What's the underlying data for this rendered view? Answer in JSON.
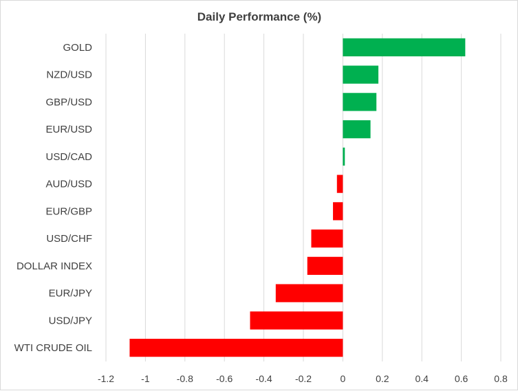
{
  "chart_data": {
    "type": "bar",
    "orientation": "horizontal",
    "title": "Daily Performance  (%)",
    "xlabel": "",
    "ylabel": "",
    "xlim": [
      -1.2,
      0.8
    ],
    "x_ticks": [
      -1.2,
      -1,
      -0.8,
      -0.6,
      -0.4,
      -0.2,
      0,
      0.2,
      0.4,
      0.6,
      0.8
    ],
    "x_tick_labels": [
      "-1.2",
      "-1",
      "-0.8",
      "-0.6",
      "-0.4",
      "-0.2",
      "0",
      "0.2",
      "0.4",
      "0.6",
      "0.8"
    ],
    "grid": true,
    "legend": "none",
    "categories": [
      "GOLD",
      "NZD/USD",
      "GBP/USD",
      "EUR/USD",
      "USD/CAD",
      "AUD/USD",
      "EUR/GBP",
      "USD/CHF",
      "DOLLAR INDEX",
      "EUR/JPY",
      "USD/JPY",
      "WTI CRUDE OIL"
    ],
    "values": [
      0.62,
      0.18,
      0.17,
      0.14,
      0.01,
      -0.03,
      -0.05,
      -0.16,
      -0.18,
      -0.34,
      -0.47,
      -1.08
    ],
    "colors": {
      "positive": "#00b050",
      "negative": "#ff0000",
      "grid": "#d9d9d9",
      "text": "#404040"
    }
  }
}
